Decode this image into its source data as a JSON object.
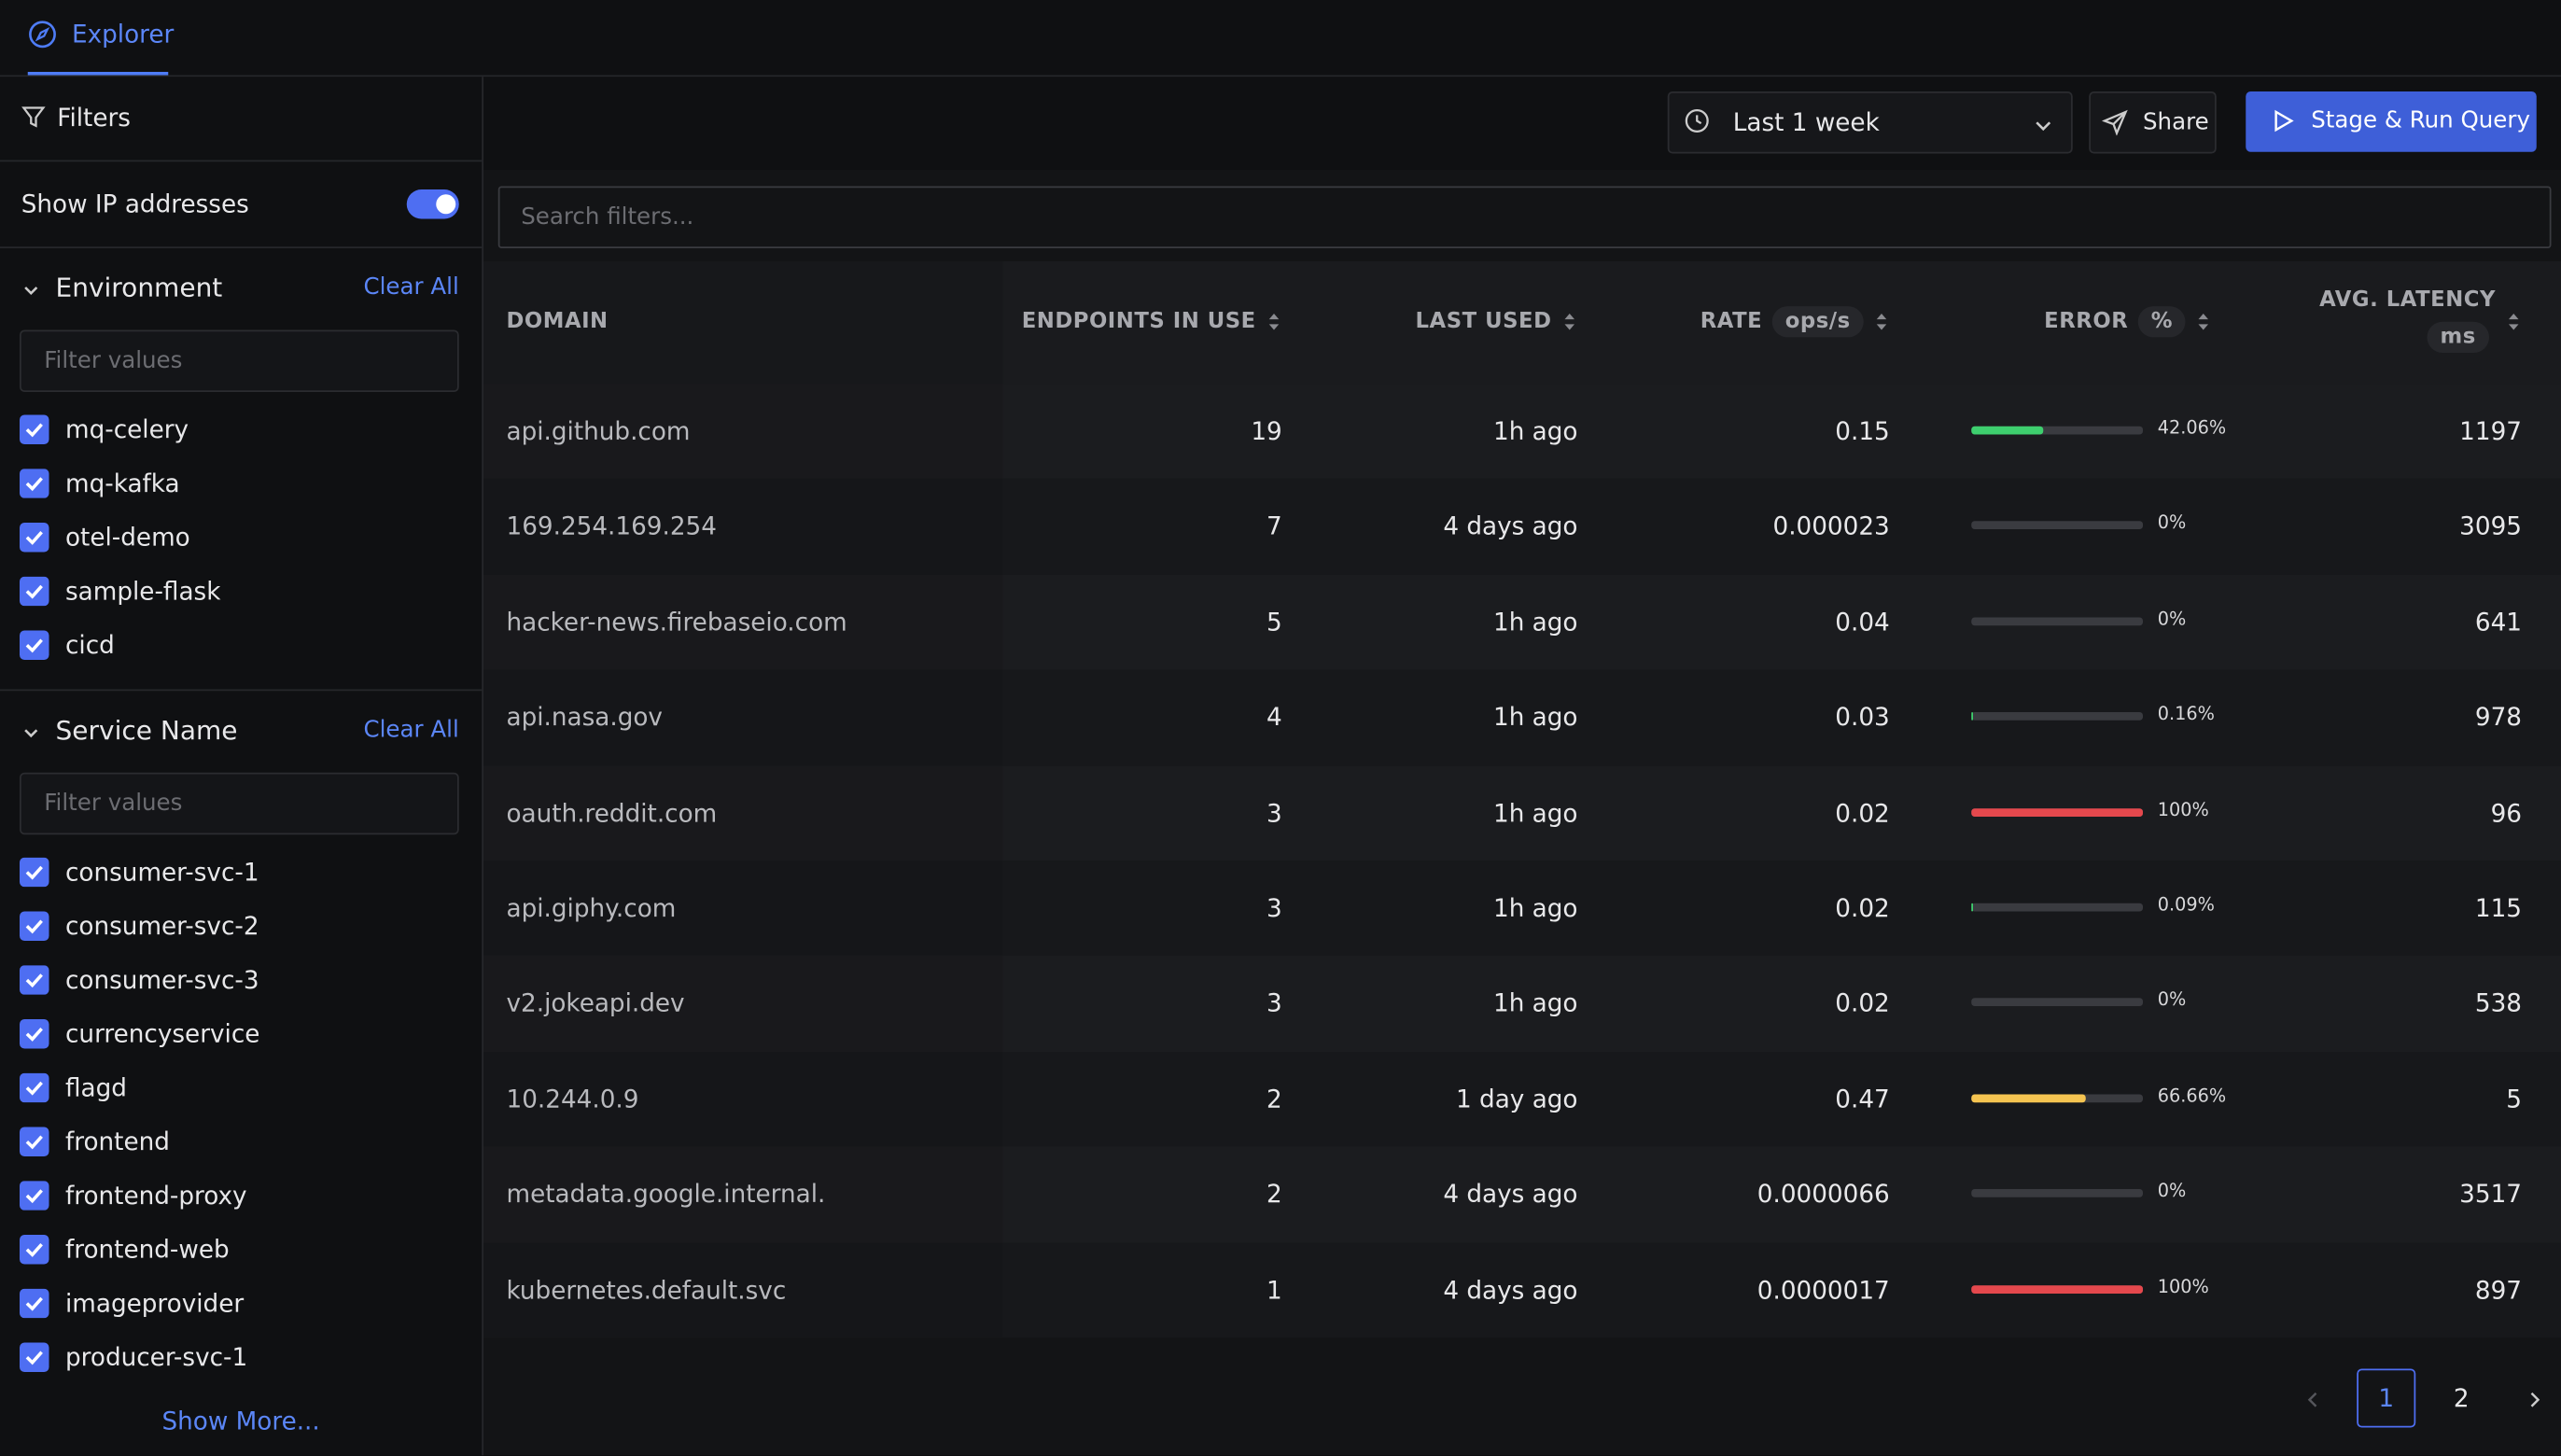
{
  "tab": "Explorer",
  "sidebar": {
    "title": "Filters",
    "toggle": {
      "label": "Show IP addresses",
      "on": true
    },
    "sections": [
      {
        "title": "Environment",
        "clear": "Clear All",
        "placeholder": "Filter values",
        "items": [
          "mq-celery",
          "mq-kafka",
          "otel-demo",
          "sample-flask",
          "cicd"
        ]
      },
      {
        "title": "Service Name",
        "clear": "Clear All",
        "placeholder": "Filter values",
        "items": [
          "consumer-svc-1",
          "consumer-svc-2",
          "consumer-svc-3",
          "currencyservice",
          "flagd",
          "frontend",
          "frontend-proxy",
          "frontend-web",
          "imageprovider",
          "producer-svc-1"
        ]
      }
    ],
    "show_more": "Show More..."
  },
  "toolbar": {
    "time_range": "Last 1 week",
    "share": "Share",
    "run": "Stage & Run Query"
  },
  "search_placeholder": "Search filters...",
  "table": {
    "columns": [
      {
        "label": "DOMAIN"
      },
      {
        "label": "ENDPOINTS IN USE"
      },
      {
        "label": "LAST USED"
      },
      {
        "label": "RATE",
        "unit": "ops/s"
      },
      {
        "label": "ERROR",
        "unit": "%"
      },
      {
        "label": "AVG. LATENCY",
        "unit": "ms"
      }
    ],
    "rows": [
      {
        "domain": "api.github.com",
        "endpoints": 19,
        "last_used": "1h ago",
        "rate": "0.15",
        "error": 42.06,
        "error_label": "42.06%",
        "error_color": "#3ecf6e",
        "latency": 1197
      },
      {
        "domain": "169.254.169.254",
        "endpoints": 7,
        "last_used": "4 days ago",
        "rate": "0.000023",
        "error": 0,
        "error_label": "0%",
        "error_color": "#3ecf6e",
        "latency": 3095
      },
      {
        "domain": "hacker-news.firebaseio.com",
        "endpoints": 5,
        "last_used": "1h ago",
        "rate": "0.04",
        "error": 0,
        "error_label": "0%",
        "error_color": "#3ecf6e",
        "latency": 641
      },
      {
        "domain": "api.nasa.gov",
        "endpoints": 4,
        "last_used": "1h ago",
        "rate": "0.03",
        "error": 0.16,
        "error_label": "0.16%",
        "error_color": "#3ecf6e",
        "latency": 978
      },
      {
        "domain": "oauth.reddit.com",
        "endpoints": 3,
        "last_used": "1h ago",
        "rate": "0.02",
        "error": 100,
        "error_label": "100%",
        "error_color": "#e5484d",
        "latency": 96
      },
      {
        "domain": "api.giphy.com",
        "endpoints": 3,
        "last_used": "1h ago",
        "rate": "0.02",
        "error": 0.09,
        "error_label": "0.09%",
        "error_color": "#3ecf6e",
        "latency": 115
      },
      {
        "domain": "v2.jokeapi.dev",
        "endpoints": 3,
        "last_used": "1h ago",
        "rate": "0.02",
        "error": 0,
        "error_label": "0%",
        "error_color": "#3ecf6e",
        "latency": 538
      },
      {
        "domain": "10.244.0.9",
        "endpoints": 2,
        "last_used": "1 day ago",
        "rate": "0.47",
        "error": 66.66,
        "error_label": "66.66%",
        "error_color": "#f5c451",
        "latency": 5
      },
      {
        "domain": "metadata.google.internal.",
        "endpoints": 2,
        "last_used": "4 days ago",
        "rate": "0.0000066",
        "error": 0,
        "error_label": "0%",
        "error_color": "#3ecf6e",
        "latency": 3517
      },
      {
        "domain": "kubernetes.default.svc",
        "endpoints": 1,
        "last_used": "4 days ago",
        "rate": "0.0000017",
        "error": 100,
        "error_label": "100%",
        "error_color": "#e5484d",
        "latency": 897
      }
    ]
  },
  "pagination": {
    "pages": [
      1,
      2
    ],
    "current": 1
  }
}
